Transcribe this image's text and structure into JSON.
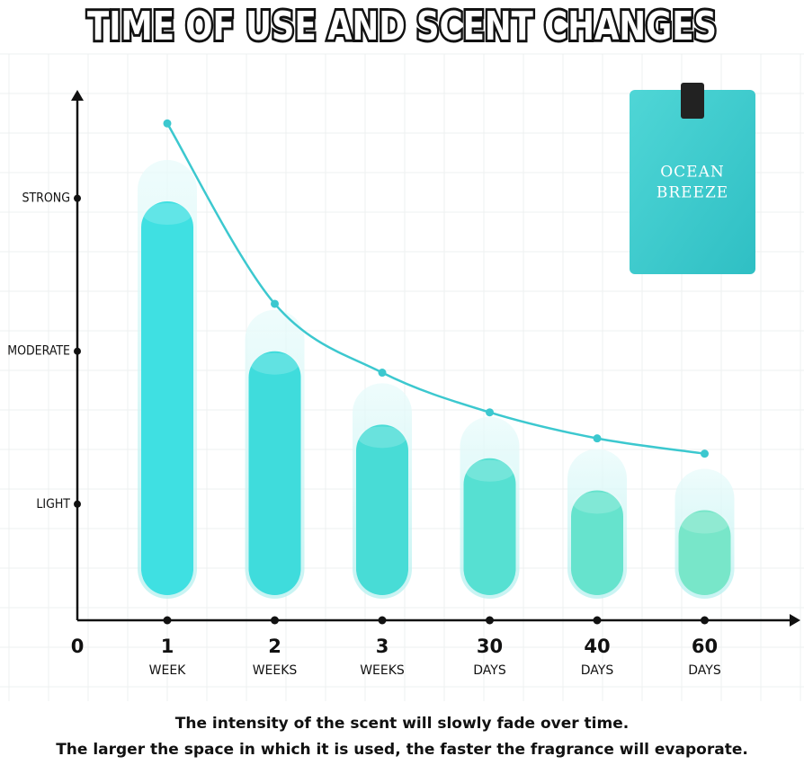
{
  "chart_data": {
    "type": "bar",
    "title": "TIME OF USE AND SCENT CHANGES",
    "origin_label": "0",
    "categories": [
      "1",
      "2",
      "3",
      "30",
      "40",
      "60"
    ],
    "category_units": [
      "WEEK",
      "WEEKS",
      "WEEKS",
      "DAYS",
      "DAYS",
      "DAYS"
    ],
    "ylim": [
      0.24,
      3.68
    ],
    "yticks": [
      {
        "value": 1,
        "label": "LIGHT"
      },
      {
        "value": 2,
        "label": "MODERATE"
      },
      {
        "value": 3,
        "label": "STRONG"
      }
    ],
    "series": [
      {
        "type": "bar",
        "color": "#3fdde0",
        "values": [
          2.98,
          2.0,
          1.52,
          1.3,
          1.09,
          0.96
        ]
      },
      {
        "type": "line",
        "color": "#3cc8cf",
        "values": [
          3.49,
          2.31,
          1.86,
          1.6,
          1.43,
          1.33
        ]
      }
    ],
    "grid": true,
    "notes": [
      "The intensity of the scent will slowly fade over time.",
      "The larger the space in which it is used, the faster the fragrance will evaporate."
    ],
    "product_label": [
      "OCEAN",
      "BREEZE"
    ]
  }
}
